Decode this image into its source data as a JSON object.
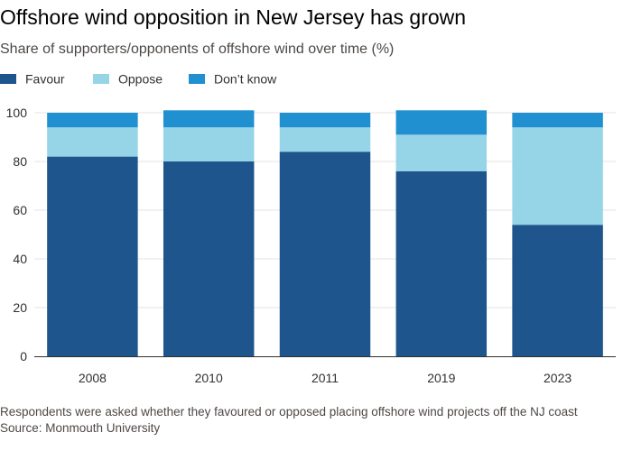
{
  "title": "Offshore wind opposition in New Jersey has grown",
  "subtitle": "Share of supporters/opponents of offshore wind over time (%)",
  "footnote": "Respondents were asked whether they favoured or opposed placing offshore wind projects off the NJ coast",
  "source": "Source: Monmouth University",
  "colors": {
    "favour": "#1e558c",
    "oppose": "#96d4e8",
    "dont_know": "#2090d0",
    "gridline": "#e6e3df",
    "axis": "#33302e"
  },
  "legend": [
    {
      "label": "Favour",
      "color": "#1e558c"
    },
    {
      "label": "Oppose",
      "color": "#96d4e8"
    },
    {
      "label": "Don’t know",
      "color": "#2090d0"
    }
  ],
  "chart_data": {
    "type": "bar",
    "stacked": true,
    "categories": [
      "2008",
      "2010",
      "2011",
      "2019",
      "2023"
    ],
    "series": [
      {
        "name": "Favour",
        "values": [
          82,
          80,
          84,
          76,
          54
        ]
      },
      {
        "name": "Oppose",
        "values": [
          12,
          14,
          10,
          15,
          40
        ]
      },
      {
        "name": "Don’t know",
        "values": [
          6,
          7,
          6,
          10,
          6
        ]
      }
    ],
    "ylim": [
      0,
      100
    ],
    "yticks": [
      0,
      20,
      40,
      60,
      80,
      100
    ],
    "grid": true,
    "legend_position": "top-left"
  }
}
